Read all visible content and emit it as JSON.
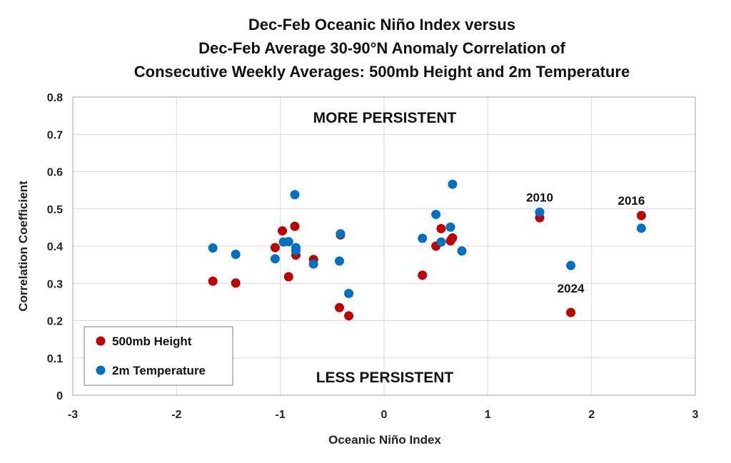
{
  "chart_data": {
    "type": "scatter",
    "title": [
      "Dec-Feb Oceanic Niño Index versus",
      "Dec-Feb Average 30-90°N Anomaly Correlation of",
      "Consecutive Weekly Averages: 500mb Height and 2m Temperature"
    ],
    "xlabel": "Oceanic Niño Index",
    "ylabel": "Correlation Coefficient",
    "xlim": [
      -3,
      3
    ],
    "ylim": [
      0,
      0.8
    ],
    "x_ticks": [
      -3,
      -2,
      -1,
      0,
      1,
      2,
      3
    ],
    "y_ticks": [
      0,
      0.1,
      0.2,
      0.3,
      0.4,
      0.5,
      0.6,
      0.7,
      0.8
    ],
    "grid": true,
    "legend_position": "bottom-left",
    "region_labels": {
      "top": "MORE PERSISTENT",
      "bottom": "LESS PERSISTENT"
    },
    "series": [
      {
        "name": "500mb Height",
        "color": "#c00000",
        "points": [
          [
            -1.65,
            0.306
          ],
          [
            -1.43,
            0.301
          ],
          [
            -1.05,
            0.396
          ],
          [
            -0.98,
            0.441
          ],
          [
            -0.92,
            0.318
          ],
          [
            -0.86,
            0.453
          ],
          [
            -0.85,
            0.376
          ],
          [
            -0.68,
            0.364
          ],
          [
            -0.42,
            0.43
          ],
          [
            -0.43,
            0.235
          ],
          [
            -0.34,
            0.213
          ],
          [
            0.37,
            0.322
          ],
          [
            0.5,
            0.4
          ],
          [
            0.55,
            0.447
          ],
          [
            0.64,
            0.414
          ],
          [
            0.66,
            0.422
          ],
          [
            1.5,
            0.476
          ],
          [
            1.8,
            0.222
          ],
          [
            2.48,
            0.482
          ]
        ]
      },
      {
        "name": "2m Temperature",
        "color": "#0070c0",
        "points": [
          [
            -1.65,
            0.395
          ],
          [
            -1.43,
            0.378
          ],
          [
            -1.05,
            0.366
          ],
          [
            -0.97,
            0.411
          ],
          [
            -0.92,
            0.412
          ],
          [
            -0.86,
            0.538
          ],
          [
            -0.85,
            0.396
          ],
          [
            -0.85,
            0.388
          ],
          [
            -0.68,
            0.352
          ],
          [
            -0.42,
            0.433
          ],
          [
            -0.43,
            0.36
          ],
          [
            -0.34,
            0.273
          ],
          [
            0.37,
            0.421
          ],
          [
            0.5,
            0.485
          ],
          [
            0.55,
            0.411
          ],
          [
            0.64,
            0.451
          ],
          [
            0.66,
            0.566
          ],
          [
            0.75,
            0.387
          ],
          [
            1.5,
            0.491
          ],
          [
            1.8,
            0.348
          ],
          [
            2.48,
            0.448
          ]
        ]
      }
    ],
    "annotations": [
      {
        "text": "2010",
        "x": 1.5,
        "y": 0.491
      },
      {
        "text": "2024",
        "x": 1.8,
        "y": 0.222
      },
      {
        "text": "2016",
        "x": 2.48,
        "y": 0.482
      }
    ]
  }
}
